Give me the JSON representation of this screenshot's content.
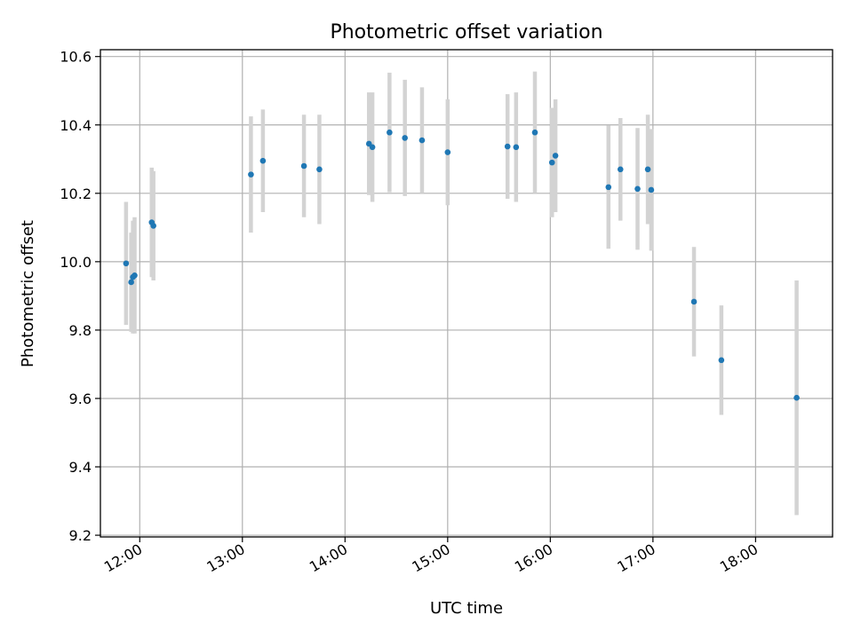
{
  "chart_data": {
    "type": "scatter",
    "title": "Photometric offset variation",
    "xlabel": "UTC time",
    "ylabel": "Photometric offset",
    "xlim": [
      "11:37",
      "18:45"
    ],
    "ylim": [
      9.195,
      10.62
    ],
    "x_ticks": [
      "12:00",
      "13:00",
      "14:00",
      "15:00",
      "16:00",
      "17:00",
      "18:00"
    ],
    "y_ticks": [
      9.2,
      9.4,
      9.6,
      9.8,
      10.0,
      10.2,
      10.4,
      10.6
    ],
    "grid": true,
    "colors": {
      "points": "#1f77b4",
      "errorbars": "#d3d3d3"
    },
    "series": [
      {
        "points": [
          {
            "x": "11:52",
            "y": 9.995,
            "err": 0.18
          },
          {
            "x": "11:55",
            "y": 9.94,
            "err": 0.145
          },
          {
            "x": "11:56",
            "y": 9.955,
            "err": 0.165
          },
          {
            "x": "11:57",
            "y": 9.96,
            "err": 0.17
          },
          {
            "x": "12:07",
            "y": 10.115,
            "err": 0.16
          },
          {
            "x": "12:08",
            "y": 10.105,
            "err": 0.16
          },
          {
            "x": "13:05",
            "y": 10.255,
            "err": 0.17
          },
          {
            "x": "13:12",
            "y": 10.295,
            "err": 0.15
          },
          {
            "x": "13:36",
            "y": 10.28,
            "err": 0.15
          },
          {
            "x": "13:45",
            "y": 10.27,
            "err": 0.16
          },
          {
            "x": "14:14",
            "y": 10.345,
            "err": 0.15
          },
          {
            "x": "14:16",
            "y": 10.335,
            "err": 0.16
          },
          {
            "x": "14:26",
            "y": 10.378,
            "err": 0.175
          },
          {
            "x": "14:35",
            "y": 10.362,
            "err": 0.17
          },
          {
            "x": "14:45",
            "y": 10.355,
            "err": 0.155
          },
          {
            "x": "15:00",
            "y": 10.32,
            "err": 0.155
          },
          {
            "x": "15:35",
            "y": 10.337,
            "err": 0.153
          },
          {
            "x": "15:40",
            "y": 10.335,
            "err": 0.16
          },
          {
            "x": "15:51",
            "y": 10.378,
            "err": 0.178
          },
          {
            "x": "16:01",
            "y": 10.29,
            "err": 0.16
          },
          {
            "x": "16:03",
            "y": 10.31,
            "err": 0.165
          },
          {
            "x": "16:34",
            "y": 10.218,
            "err": 0.18
          },
          {
            "x": "16:41",
            "y": 10.27,
            "err": 0.15
          },
          {
            "x": "16:51",
            "y": 10.213,
            "err": 0.178
          },
          {
            "x": "16:57",
            "y": 10.27,
            "err": 0.16
          },
          {
            "x": "16:59",
            "y": 10.21,
            "err": 0.178
          },
          {
            "x": "17:24",
            "y": 9.883,
            "err": 0.16
          },
          {
            "x": "17:40",
            "y": 9.712,
            "err": 0.16
          },
          {
            "x": "18:24",
            "y": 9.602,
            "err": 0.343
          }
        ]
      }
    ]
  }
}
